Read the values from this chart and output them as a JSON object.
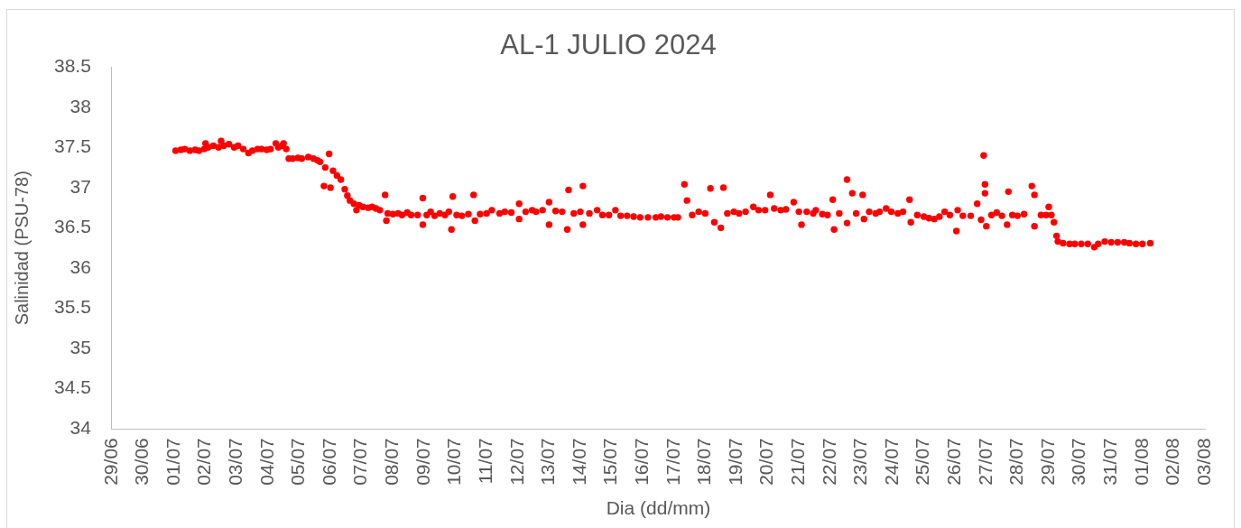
{
  "chart_data": {
    "type": "scatter",
    "title": "AL-1 JULIO 2024",
    "xlabel": "Dia (dd/mm)",
    "ylabel": "Salinidad (PSU-78)",
    "x": [
      "2024-07-01T01:00",
      "2024-07-01T05:00",
      "2024-07-01T08:00",
      "2024-07-01T12:00",
      "2024-07-01T16:00",
      "2024-07-01T19:00",
      "2024-07-01T23:00",
      "2024-07-02T00:00",
      "2024-07-02T02:00",
      "2024-07-02T06:00",
      "2024-07-02T10:00",
      "2024-07-02T12:00",
      "2024-07-02T14:00",
      "2024-07-02T18:00",
      "2024-07-02T22:00",
      "2024-07-03T01:00",
      "2024-07-03T05:00",
      "2024-07-03T09:00",
      "2024-07-03T12:00",
      "2024-07-03T16:00",
      "2024-07-03T19:00",
      "2024-07-03T23:00",
      "2024-07-04T02:00",
      "2024-07-04T06:00",
      "2024-07-04T08:00",
      "2024-07-04T11:00",
      "2024-07-04T12:00",
      "2024-07-04T14:00",
      "2024-07-04T16:00",
      "2024-07-04T19:00",
      "2024-07-04T23:00",
      "2024-07-05T02:00",
      "2024-07-05T07:00",
      "2024-07-05T11:00",
      "2024-07-05T14:00",
      "2024-07-05T16:00",
      "2024-07-05T19:00",
      "2024-07-05T20:00",
      "2024-07-05T23:00",
      "2024-07-06T00:00",
      "2024-07-06T02:00",
      "2024-07-06T05:00",
      "2024-07-06T08:00",
      "2024-07-06T11:00",
      "2024-07-06T13:00",
      "2024-07-06T15:00",
      "2024-07-06T18:00",
      "2024-07-06T20:00",
      "2024-07-06T22:00",
      "2024-07-07T01:00",
      "2024-07-07T05:00",
      "2024-07-07T08:00",
      "2024-07-07T11:00",
      "2024-07-07T14:00",
      "2024-07-07T18:00",
      "2024-07-07T19:00",
      "2024-07-07T20:00",
      "2024-07-08T00:00",
      "2024-07-08T04:00",
      "2024-07-08T07:00",
      "2024-07-08T11:00",
      "2024-07-08T14:00",
      "2024-07-08T19:00",
      "2024-07-08T23:00",
      "2024-07-08T23:00",
      "2024-07-09T02:00",
      "2024-07-09T05:00",
      "2024-07-09T08:00",
      "2024-07-09T12:00",
      "2024-07-09T16:00",
      "2024-07-09T19:00",
      "2024-07-09T21:00",
      "2024-07-09T22:00",
      "2024-07-10T01:00",
      "2024-07-10T05:00",
      "2024-07-10T10:00",
      "2024-07-10T14:00",
      "2024-07-10T15:00",
      "2024-07-10T19:00",
      "2024-07-11T00:00",
      "2024-07-11T04:00",
      "2024-07-11T10:00",
      "2024-07-11T14:00",
      "2024-07-11T19:00",
      "2024-07-12T01:00",
      "2024-07-12T01:00",
      "2024-07-12T06:00",
      "2024-07-12T11:00",
      "2024-07-12T14:00",
      "2024-07-12T19:00",
      "2024-07-13T00:00",
      "2024-07-13T00:00",
      "2024-07-13T05:00",
      "2024-07-13T10:00",
      "2024-07-13T14:00",
      "2024-07-13T15:00",
      "2024-07-13T19:00",
      "2024-07-14T00:00",
      "2024-07-14T02:00",
      "2024-07-14T02:00",
      "2024-07-14T07:00",
      "2024-07-14T13:00",
      "2024-07-14T17:00",
      "2024-07-14T22:00",
      "2024-07-15T03:00",
      "2024-07-15T07:00",
      "2024-07-15T12:00",
      "2024-07-15T17:00",
      "2024-07-15T22:00",
      "2024-07-16T04:00",
      "2024-07-16T10:00",
      "2024-07-16T14:00",
      "2024-07-16T19:00",
      "2024-07-17T00:00",
      "2024-07-17T03:00",
      "2024-07-17T08:00",
      "2024-07-17T10:00",
      "2024-07-17T14:00",
      "2024-07-17T19:00",
      "2024-07-18T00:00",
      "2024-07-18T04:00",
      "2024-07-18T07:00",
      "2024-07-18T12:00",
      "2024-07-18T14:00",
      "2024-07-18T17:00",
      "2024-07-18T22:00",
      "2024-07-19T02:00",
      "2024-07-19T07:00",
      "2024-07-19T13:00",
      "2024-07-19T17:00",
      "2024-07-19T22:00",
      "2024-07-20T02:00",
      "2024-07-20T05:00",
      "2024-07-20T10:00",
      "2024-07-20T14:00",
      "2024-07-20T20:00",
      "2024-07-21T00:00",
      "2024-07-21T02:00",
      "2024-07-21T06:00",
      "2024-07-21T11:00",
      "2024-07-21T13:00",
      "2024-07-21T18:00",
      "2024-07-21T22:00",
      "2024-07-22T02:00",
      "2024-07-22T03:00",
      "2024-07-22T07:00",
      "2024-07-22T13:00",
      "2024-07-22T13:00",
      "2024-07-22T17:00",
      "2024-07-22T20:00",
      "2024-07-23T01:00",
      "2024-07-23T02:00",
      "2024-07-23T06:00",
      "2024-07-23T11:00",
      "2024-07-23T14:00",
      "2024-07-23T19:00",
      "2024-07-23T23:00",
      "2024-07-24T04:00",
      "2024-07-24T08:00",
      "2024-07-24T13:00",
      "2024-07-24T14:00",
      "2024-07-24T19:00",
      "2024-07-25T00:00",
      "2024-07-25T04:00",
      "2024-07-25T08:00",
      "2024-07-25T12:00",
      "2024-07-25T16:00",
      "2024-07-25T20:00",
      "2024-07-26T01:00",
      "2024-07-26T02:00",
      "2024-07-26T06:00",
      "2024-07-26T12:00",
      "2024-07-26T17:00",
      "2024-07-26T20:00",
      "2024-07-26T22:00",
      "2024-07-26T23:00",
      "2024-07-26T23:00",
      "2024-07-27T00:00",
      "2024-07-27T04:00",
      "2024-07-27T08:00",
      "2024-07-27T12:00",
      "2024-07-27T16:00",
      "2024-07-27T17:00",
      "2024-07-27T20:00",
      "2024-07-28T00:00",
      "2024-07-28T05:00",
      "2024-07-28T11:00",
      "2024-07-28T13:00",
      "2024-07-28T13:00",
      "2024-07-28T18:00",
      "2024-07-28T22:00",
      "2024-07-29T00:00",
      "2024-07-29T02:00",
      "2024-07-29T04:00",
      "2024-07-29T06:00",
      "2024-07-29T07:00",
      "2024-07-29T11:00",
      "2024-07-29T16:00",
      "2024-07-29T20:00",
      "2024-07-30T01:00",
      "2024-07-30T06:00",
      "2024-07-30T11:00",
      "2024-07-30T14:00",
      "2024-07-30T19:00",
      "2024-07-31T00:00",
      "2024-07-31T05:00",
      "2024-07-31T10:00",
      "2024-07-31T14:00",
      "2024-07-31T19:00",
      "2024-08-01T00:00",
      "2024-08-01T06:00"
    ],
    "series": [
      {
        "color": "#ff0000",
        "values": [
          37.46,
          37.47,
          37.48,
          37.46,
          37.47,
          37.46,
          37.48,
          37.55,
          37.5,
          37.52,
          37.5,
          37.58,
          37.52,
          37.54,
          37.5,
          37.52,
          37.48,
          37.43,
          37.46,
          37.48,
          37.48,
          37.47,
          37.48,
          37.55,
          37.5,
          37.52,
          37.55,
          37.48,
          37.36,
          37.36,
          37.37,
          37.36,
          37.38,
          37.36,
          37.34,
          37.32,
          37.02,
          37.25,
          37.42,
          37.0,
          37.21,
          37.15,
          37.1,
          36.98,
          36.9,
          36.84,
          36.8,
          36.72,
          36.78,
          36.76,
          36.75,
          36.76,
          36.74,
          36.72,
          36.91,
          36.59,
          36.68,
          36.67,
          36.68,
          36.66,
          36.69,
          36.66,
          36.66,
          36.87,
          36.54,
          36.66,
          36.7,
          36.65,
          36.68,
          36.66,
          36.7,
          36.48,
          36.89,
          36.66,
          36.65,
          36.67,
          36.91,
          36.59,
          36.67,
          36.68,
          36.72,
          36.68,
          36.7,
          36.69,
          36.8,
          36.61,
          36.7,
          36.72,
          36.7,
          36.72,
          36.82,
          36.54,
          36.71,
          36.7,
          36.48,
          36.97,
          36.68,
          36.7,
          37.02,
          36.54,
          36.68,
          36.72,
          36.66,
          36.66,
          36.72,
          36.65,
          36.65,
          36.64,
          36.63,
          36.63,
          36.63,
          36.64,
          36.63,
          36.63,
          36.63,
          37.04,
          36.84,
          36.66,
          36.7,
          36.68,
          36.99,
          36.57,
          36.5,
          37.0,
          36.68,
          36.7,
          36.68,
          36.7,
          36.76,
          36.72,
          36.72,
          36.91,
          36.74,
          36.72,
          36.73,
          36.82,
          36.7,
          36.54,
          36.7,
          36.68,
          36.72,
          36.67,
          36.66,
          36.85,
          36.48,
          36.68,
          37.1,
          36.56,
          36.93,
          36.68,
          36.91,
          36.61,
          36.7,
          36.68,
          36.7,
          36.74,
          36.7,
          36.68,
          36.7,
          36.85,
          36.57,
          36.66,
          36.64,
          36.62,
          36.61,
          36.64,
          36.7,
          36.66,
          36.46,
          36.72,
          36.65,
          36.65,
          36.8,
          36.6,
          37.4,
          37.04,
          36.93,
          36.52,
          36.66,
          36.69,
          36.65,
          36.54,
          36.95,
          36.66,
          36.65,
          36.67,
          37.02,
          36.91,
          36.52,
          36.66,
          36.66,
          36.76,
          36.66,
          36.57,
          36.4,
          36.33,
          36.31,
          36.3,
          36.3,
          36.3,
          36.3,
          36.26,
          36.3,
          36.33,
          36.32,
          36.32,
          36.32,
          36.31,
          36.3,
          36.3,
          36.31
        ]
      }
    ],
    "xlim": [
      "2024-06-29",
      "2024-08-03"
    ],
    "xticks": [
      {
        "value": "2024-06-29",
        "label": "29/06"
      },
      {
        "value": "2024-06-30",
        "label": "30/06"
      },
      {
        "value": "2024-07-01",
        "label": "01/07"
      },
      {
        "value": "2024-07-02",
        "label": "02/07"
      },
      {
        "value": "2024-07-03",
        "label": "03/07"
      },
      {
        "value": "2024-07-04",
        "label": "04/07"
      },
      {
        "value": "2024-07-05",
        "label": "05/07"
      },
      {
        "value": "2024-07-06",
        "label": "06/07"
      },
      {
        "value": "2024-07-07",
        "label": "07/07"
      },
      {
        "value": "2024-07-08",
        "label": "08/07"
      },
      {
        "value": "2024-07-09",
        "label": "09/07"
      },
      {
        "value": "2024-07-10",
        "label": "10/07"
      },
      {
        "value": "2024-07-11",
        "label": "11/07"
      },
      {
        "value": "2024-07-12",
        "label": "12/07"
      },
      {
        "value": "2024-07-13",
        "label": "13/07"
      },
      {
        "value": "2024-07-14",
        "label": "14/07"
      },
      {
        "value": "2024-07-15",
        "label": "15/07"
      },
      {
        "value": "2024-07-16",
        "label": "16/07"
      },
      {
        "value": "2024-07-17",
        "label": "17/07"
      },
      {
        "value": "2024-07-18",
        "label": "18/07"
      },
      {
        "value": "2024-07-19",
        "label": "19/07"
      },
      {
        "value": "2024-07-20",
        "label": "20/07"
      },
      {
        "value": "2024-07-21",
        "label": "21/07"
      },
      {
        "value": "2024-07-22",
        "label": "22/07"
      },
      {
        "value": "2024-07-23",
        "label": "23/07"
      },
      {
        "value": "2024-07-24",
        "label": "24/07"
      },
      {
        "value": "2024-07-25",
        "label": "25/07"
      },
      {
        "value": "2024-07-26",
        "label": "26/07"
      },
      {
        "value": "2024-07-27",
        "label": "27/07"
      },
      {
        "value": "2024-07-28",
        "label": "28/07"
      },
      {
        "value": "2024-07-29",
        "label": "29/07"
      },
      {
        "value": "2024-07-30",
        "label": "30/07"
      },
      {
        "value": "2024-07-31",
        "label": "31/07"
      },
      {
        "value": "2024-08-01",
        "label": "01/08"
      },
      {
        "value": "2024-08-02",
        "label": "02/08"
      },
      {
        "value": "2024-08-03",
        "label": "03/08"
      }
    ],
    "ylim": [
      34,
      38.5
    ],
    "yticks": [
      34,
      34.5,
      35,
      35.5,
      36,
      36.5,
      37,
      37.5,
      38,
      38.5
    ],
    "grid": false,
    "marker": "circle"
  }
}
